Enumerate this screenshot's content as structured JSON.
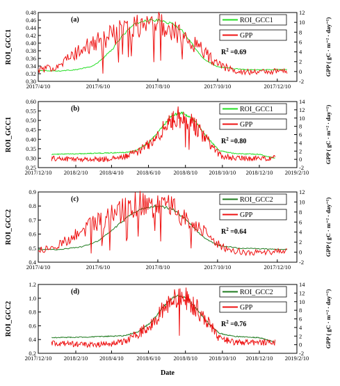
{
  "figure": {
    "shared_xlabel": "Date"
  },
  "chart_data": [
    {
      "type": "line",
      "label": "(a)",
      "xlabel": "",
      "ylabel": "ROI_GCC1",
      "ylabel_right": "GPP ( gC · m⁻² · day⁻¹)",
      "xlim": [
        "2017-04-10",
        "2017-12-30"
      ],
      "x_ticks": [
        "2017/4/10",
        "2017/6/10",
        "2017/8/10",
        "2017/10/10",
        "2017/12/10"
      ],
      "ylim": [
        0.3,
        0.48
      ],
      "y_ticks": [
        "0.30",
        "0.32",
        "0.34",
        "0.36",
        "0.38",
        "0.40",
        "0.42",
        "0.44",
        "0.46",
        "0.48"
      ],
      "ylim_right": [
        -2,
        12
      ],
      "y2_ticks": [
        "-2",
        "0",
        "2",
        "4",
        "6",
        "8",
        "10",
        "12"
      ],
      "r2_prefix": "R",
      "r2_sup": "2",
      "r2_value": " =0.69",
      "legend_position": "top-right",
      "series": [
        {
          "name": "ROI_GCC1",
          "color": "#22dd22",
          "axis": "left",
          "points": [
            [
              "2017-04-10",
              0.329
            ],
            [
              "2017-05-01",
              0.327
            ],
            [
              "2017-05-20",
              0.331
            ],
            [
              "2017-06-05",
              0.34
            ],
            [
              "2017-06-15",
              0.36
            ],
            [
              "2017-06-25",
              0.385
            ],
            [
              "2017-07-05",
              0.42
            ],
            [
              "2017-07-15",
              0.445
            ],
            [
              "2017-07-25",
              0.458
            ],
            [
              "2017-08-05",
              0.46
            ],
            [
              "2017-08-15",
              0.458
            ],
            [
              "2017-08-25",
              0.45
            ],
            [
              "2017-09-05",
              0.43
            ],
            [
              "2017-09-15",
              0.395
            ],
            [
              "2017-09-25",
              0.36
            ],
            [
              "2017-10-10",
              0.338
            ],
            [
              "2017-10-25",
              0.334
            ],
            [
              "2017-11-10",
              0.33
            ],
            [
              "2017-12-20",
              0.331
            ]
          ]
        },
        {
          "name": "GPP",
          "color": "#ee1111",
          "axis": "right",
          "points": [
            [
              "2017-04-10",
              0.3
            ],
            [
              "2017-04-25",
              0.8
            ],
            [
              "2017-05-10",
              2.5
            ],
            [
              "2017-05-25",
              4.5
            ],
            [
              "2017-06-10",
              6.0
            ],
            [
              "2017-06-25",
              7.5
            ],
            [
              "2017-07-10",
              8.8
            ],
            [
              "2017-07-25",
              9.6
            ],
            [
              "2017-08-10",
              9.4
            ],
            [
              "2017-08-25",
              8.8
            ],
            [
              "2017-09-10",
              6.8
            ],
            [
              "2017-09-25",
              4.2
            ],
            [
              "2017-10-10",
              1.5
            ],
            [
              "2017-10-25",
              0.3
            ],
            [
              "2017-11-10",
              -0.1
            ],
            [
              "2017-12-20",
              0.1
            ]
          ]
        }
      ]
    },
    {
      "type": "line",
      "label": "(b)",
      "xlabel": "",
      "ylabel": "ROI_GCC1",
      "ylabel_right": "GPP ( gC · m⁻² · day⁻¹)",
      "xlim": [
        "2017-12-10",
        "2019-02-10"
      ],
      "x_ticks": [
        "2017/12/10",
        "2018/2/10",
        "2018/4/10",
        "2018/6/10",
        "2018/8/10",
        "2018/10/10",
        "2018/12/10",
        "2019/2/10"
      ],
      "ylim": [
        0.25,
        0.6
      ],
      "y_ticks": [
        "0.25",
        "0.30",
        "0.35",
        "0.40",
        "0.45",
        "0.50",
        "0.55",
        "0.60"
      ],
      "ylim_right": [
        -2,
        14
      ],
      "y2_ticks": [
        "-2",
        "0",
        "2",
        "4",
        "6",
        "8",
        "10",
        "12",
        "14"
      ],
      "r2_prefix": "R",
      "r2_sup": "2",
      "r2_value": " =0.80",
      "legend_position": "top-right",
      "series": [
        {
          "name": "ROI_GCC1",
          "color": "#22dd22",
          "axis": "left",
          "points": [
            [
              "2018-01-01",
              0.32
            ],
            [
              "2018-03-01",
              0.325
            ],
            [
              "2018-05-01",
              0.33
            ],
            [
              "2018-05-20",
              0.34
            ],
            [
              "2018-06-10",
              0.38
            ],
            [
              "2018-07-01",
              0.46
            ],
            [
              "2018-07-20",
              0.53
            ],
            [
              "2018-08-05",
              0.54
            ],
            [
              "2018-08-25",
              0.5
            ],
            [
              "2018-09-15",
              0.41
            ],
            [
              "2018-10-05",
              0.34
            ],
            [
              "2018-10-30",
              0.325
            ],
            [
              "2018-12-10",
              0.32
            ],
            [
              "2019-01-05",
              0.3
            ]
          ]
        },
        {
          "name": "GPP",
          "color": "#ee1111",
          "axis": "right",
          "points": [
            [
              "2018-01-01",
              0.2
            ],
            [
              "2018-03-01",
              0.0
            ],
            [
              "2018-04-10",
              0.1
            ],
            [
              "2018-05-01",
              0.6
            ],
            [
              "2018-05-25",
              2.0
            ],
            [
              "2018-06-15",
              4.0
            ],
            [
              "2018-07-05",
              7.5
            ],
            [
              "2018-07-25",
              10.0
            ],
            [
              "2018-08-10",
              10.2
            ],
            [
              "2018-08-25",
              8.5
            ],
            [
              "2018-09-15",
              4.5
            ],
            [
              "2018-10-05",
              1.0
            ],
            [
              "2018-11-01",
              0.2
            ],
            [
              "2019-01-05",
              0.3
            ]
          ]
        }
      ]
    },
    {
      "type": "line",
      "label": "(c)",
      "xlabel": "",
      "ylabel": "ROI_GCC2",
      "ylabel_right": "GPP ( gC · m⁻² · day⁻¹)",
      "xlim": [
        "2017-04-10",
        "2017-12-30"
      ],
      "x_ticks": [
        "2017/4/10",
        "2017/6/10",
        "2017/8/10",
        "2017/10/10",
        "2017/12/10"
      ],
      "ylim": [
        0.4,
        0.9
      ],
      "y_ticks": [
        "0.4",
        "0.5",
        "0.6",
        "0.7",
        "0.8",
        "0.9"
      ],
      "ylim_right": [
        -2,
        12
      ],
      "y2_ticks": [
        "-2",
        "0",
        "2",
        "4",
        "6",
        "8",
        "10",
        "12"
      ],
      "r2_prefix": "R",
      "r2_sup": "2",
      "r2_value": " =0.64",
      "legend_position": "top-right",
      "series": [
        {
          "name": "ROI_GCC2",
          "color": "#1e7a1e",
          "axis": "left",
          "points": [
            [
              "2017-04-10",
              0.49
            ],
            [
              "2017-05-01",
              0.49
            ],
            [
              "2017-05-25",
              0.51
            ],
            [
              "2017-06-10",
              0.55
            ],
            [
              "2017-06-25",
              0.63
            ],
            [
              "2017-07-10",
              0.72
            ],
            [
              "2017-07-25",
              0.78
            ],
            [
              "2017-08-10",
              0.8
            ],
            [
              "2017-08-25",
              0.78
            ],
            [
              "2017-09-10",
              0.69
            ],
            [
              "2017-09-25",
              0.58
            ],
            [
              "2017-10-10",
              0.52
            ],
            [
              "2017-11-01",
              0.5
            ],
            [
              "2017-12-20",
              0.49
            ]
          ]
        },
        {
          "name": "GPP",
          "color": "#ee1111",
          "axis": "right",
          "points": [
            [
              "2017-04-10",
              0.3
            ],
            [
              "2017-04-25",
              0.8
            ],
            [
              "2017-05-10",
              2.5
            ],
            [
              "2017-05-25",
              4.5
            ],
            [
              "2017-06-10",
              6.0
            ],
            [
              "2017-06-25",
              7.5
            ],
            [
              "2017-07-10",
              8.8
            ],
            [
              "2017-07-25",
              9.6
            ],
            [
              "2017-08-10",
              9.4
            ],
            [
              "2017-08-25",
              8.8
            ],
            [
              "2017-09-10",
              6.8
            ],
            [
              "2017-09-25",
              4.2
            ],
            [
              "2017-10-10",
              1.5
            ],
            [
              "2017-10-25",
              0.3
            ],
            [
              "2017-11-10",
              -0.1
            ],
            [
              "2017-12-20",
              0.1
            ]
          ]
        }
      ]
    },
    {
      "type": "line",
      "label": "(d)",
      "xlabel": "Date",
      "ylabel": "ROI_GCC2",
      "ylabel_right": "GPP ( gC · m⁻² · day⁻¹)",
      "xlim": [
        "2017-12-10",
        "2019-02-10"
      ],
      "x_ticks": [
        "2017/12/10",
        "2018/2/10",
        "2018/4/10",
        "2018/6/10",
        "2018/8/10",
        "2018/10/10",
        "2018/12/10",
        "2019/2/10"
      ],
      "ylim": [
        0.2,
        1.3
      ],
      "y_ticks": [
        "0.2",
        "0.4",
        "0.6",
        "0.8",
        "1.0",
        "1.2"
      ],
      "ylim_right": [
        -2,
        14
      ],
      "y2_ticks": [
        "-2",
        "0",
        "2",
        "4",
        "6",
        "8",
        "10",
        "12",
        "14"
      ],
      "r2_prefix": "R",
      "r2_sup": "2",
      "r2_value": " =0.76",
      "legend_position": "top-right",
      "series": [
        {
          "name": "ROI_GCC2",
          "color": "#1e7a1e",
          "axis": "left",
          "points": [
            [
              "2018-01-01",
              0.45
            ],
            [
              "2018-03-01",
              0.46
            ],
            [
              "2018-05-01",
              0.48
            ],
            [
              "2018-05-25",
              0.55
            ],
            [
              "2018-06-15",
              0.7
            ],
            [
              "2018-07-05",
              0.95
            ],
            [
              "2018-07-25",
              1.12
            ],
            [
              "2018-08-10",
              1.1
            ],
            [
              "2018-08-25",
              0.95
            ],
            [
              "2018-09-15",
              0.7
            ],
            [
              "2018-10-05",
              0.52
            ],
            [
              "2018-10-30",
              0.47
            ],
            [
              "2018-12-10",
              0.45
            ],
            [
              "2019-01-05",
              0.38
            ]
          ]
        },
        {
          "name": "GPP",
          "color": "#ee1111",
          "axis": "right",
          "points": [
            [
              "2018-01-01",
              0.3
            ],
            [
              "2018-03-01",
              0.0
            ],
            [
              "2018-04-10",
              0.2
            ],
            [
              "2018-05-01",
              0.8
            ],
            [
              "2018-05-25",
              2.5
            ],
            [
              "2018-06-15",
              5.0
            ],
            [
              "2018-07-05",
              8.5
            ],
            [
              "2018-07-25",
              10.5
            ],
            [
              "2018-08-10",
              10.8
            ],
            [
              "2018-08-25",
              9.0
            ],
            [
              "2018-09-15",
              5.5
            ],
            [
              "2018-10-05",
              1.5
            ],
            [
              "2018-11-01",
              0.5
            ],
            [
              "2019-01-05",
              0.5
            ]
          ]
        }
      ]
    }
  ]
}
